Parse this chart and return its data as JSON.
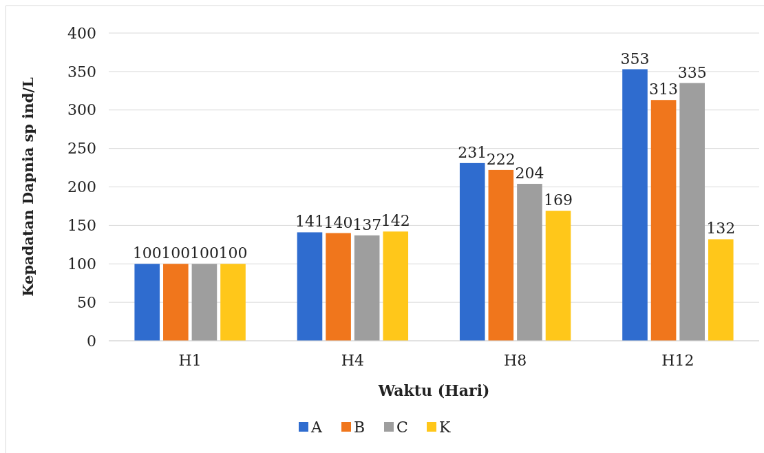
{
  "chart_data": {
    "type": "bar",
    "xlabel": "Waktu (Hari)",
    "ylabel": "Kepadatan Dapnia sp ind/L",
    "categories": [
      "H1",
      "H4",
      "H8",
      "H12"
    ],
    "series": [
      {
        "name": "A",
        "color": "#2f6ccf",
        "values": [
          100,
          141,
          231,
          353
        ]
      },
      {
        "name": "B",
        "color": "#f0761c",
        "values": [
          100,
          140,
          222,
          313
        ]
      },
      {
        "name": "C",
        "color": "#9e9e9e",
        "values": [
          100,
          137,
          204,
          335
        ]
      },
      {
        "name": "K",
        "color": "#ffc71a",
        "values": [
          100,
          142,
          169,
          132
        ]
      }
    ],
    "ylim": [
      0,
      400
    ],
    "yticks": [
      0,
      50,
      100,
      150,
      200,
      250,
      300,
      350,
      400
    ],
    "grid": "y",
    "legend": "bottom",
    "data_labels": true
  }
}
